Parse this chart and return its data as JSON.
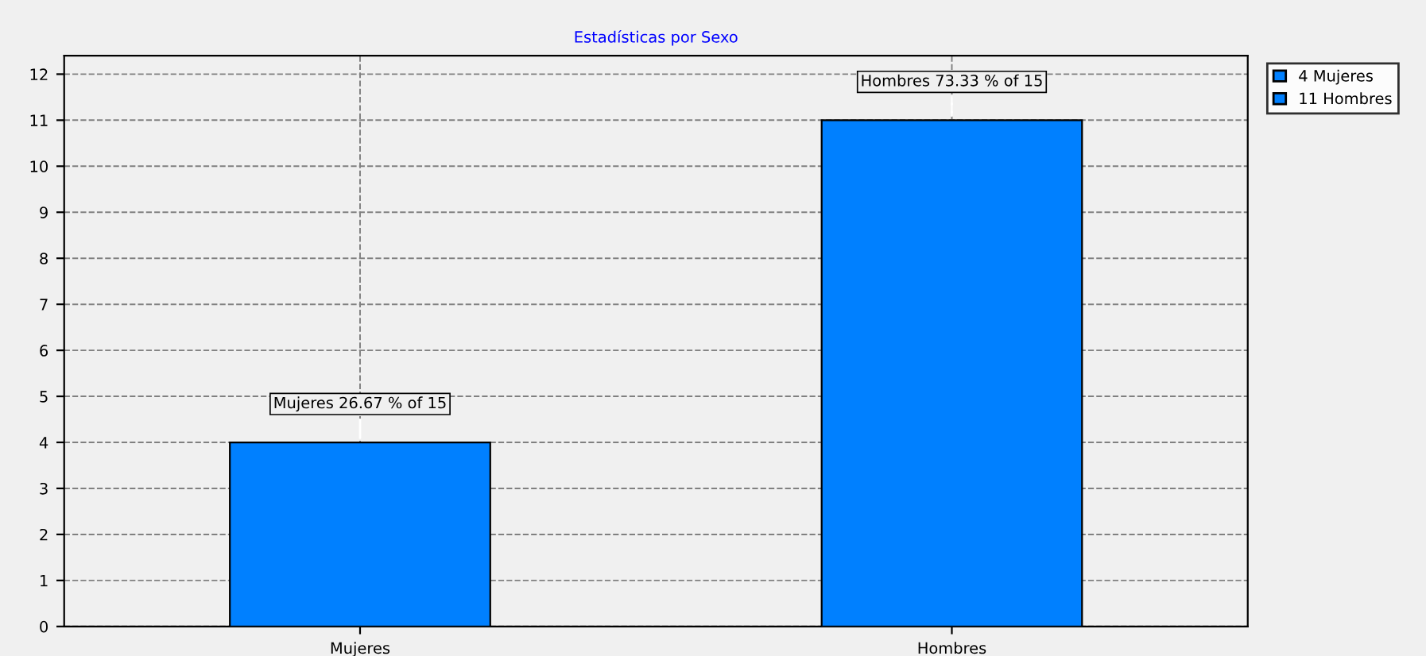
{
  "chart_data": {
    "type": "bar",
    "title": "Estadísticas por Sexo",
    "categories": [
      "Mujeres",
      "Hombres"
    ],
    "series": [
      {
        "name": "4 Mujeres",
        "color": "#0080ff",
        "values": [
          4,
          null
        ]
      },
      {
        "name": "11 Hombres",
        "color": "#0080ff",
        "values": [
          null,
          11
        ]
      }
    ],
    "ylim": [
      0,
      12.4
    ],
    "yticks": [
      0,
      1,
      2,
      3,
      4,
      5,
      6,
      7,
      8,
      9,
      10,
      11,
      12
    ],
    "grid": true,
    "legend": "top right",
    "annotations": [
      {
        "text": "Mujeres 26.67 % of 15",
        "x": "Mujeres",
        "y": 4
      },
      {
        "text": "Hombres 73.33 % of 15",
        "x": "Hombres",
        "y": 11
      }
    ]
  }
}
